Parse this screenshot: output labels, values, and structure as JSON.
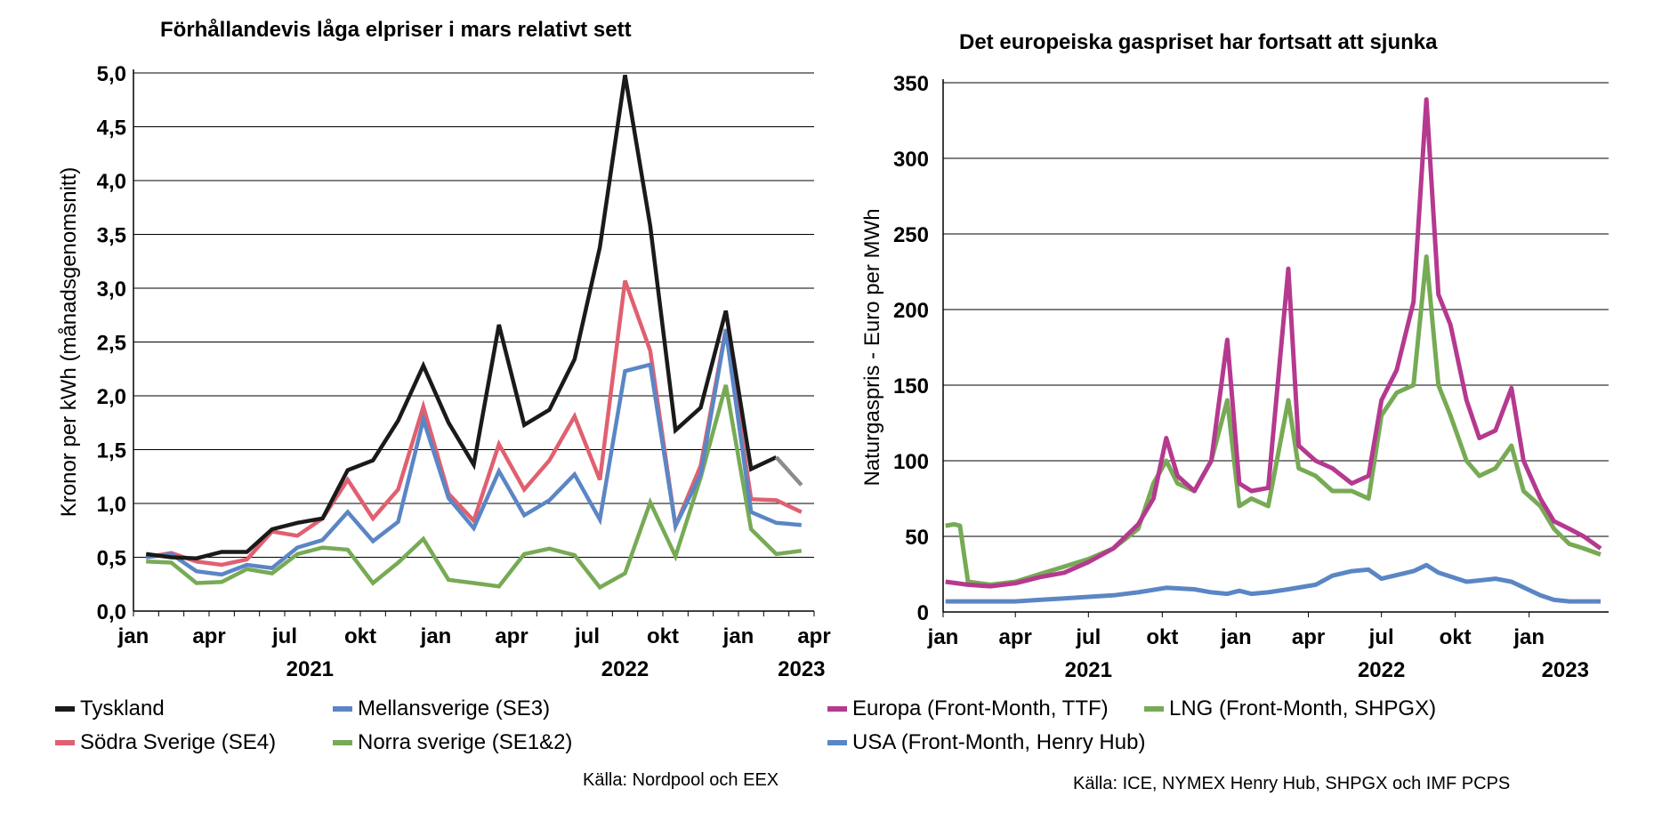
{
  "chart_data": [
    {
      "type": "line",
      "title": "Förhållandevis låga elpriser i mars relativt sett",
      "ylabel": "Kronor per kWh (månadsgenomsnitt)",
      "xlabel": "",
      "ylim": [
        0,
        5
      ],
      "yticks": [
        "0,0",
        "0,5",
        "1,0",
        "1,5",
        "2,0",
        "2,5",
        "3,0",
        "3,5",
        "4,0",
        "4,5",
        "5,0"
      ],
      "xticks": [
        "jan",
        "apr",
        "jul",
        "okt",
        "jan",
        "apr",
        "jul",
        "okt",
        "jan",
        "apr"
      ],
      "years": [
        "2021",
        "2022",
        "2023"
      ],
      "grid": true,
      "legend_position": "bottom",
      "source": "Källa: Nordpool och EEX",
      "months": [
        "2021-01",
        "2021-02",
        "2021-03",
        "2021-04",
        "2021-05",
        "2021-06",
        "2021-07",
        "2021-08",
        "2021-09",
        "2021-10",
        "2021-11",
        "2021-12",
        "2022-01",
        "2022-02",
        "2022-03",
        "2022-04",
        "2022-05",
        "2022-06",
        "2022-07",
        "2022-08",
        "2022-09",
        "2022-10",
        "2022-11",
        "2022-12",
        "2023-01",
        "2023-02",
        "2023-03"
      ],
      "series": [
        {
          "name": "Tyskland",
          "color": "#1a1a1a",
          "values": [
            0.53,
            0.5,
            0.49,
            0.55,
            0.55,
            0.76,
            0.82,
            0.86,
            1.31,
            1.4,
            1.77,
            2.28,
            1.75,
            1.36,
            2.66,
            1.73,
            1.87,
            2.34,
            3.38,
            4.98,
            3.58,
            1.68,
            1.89,
            2.79,
            1.32,
            1.43,
            null
          ],
          "projected": {
            "color": "#8c8c8c",
            "from_index": 25,
            "values": [
              1.43,
              1.17
            ]
          }
        },
        {
          "name": "Mellansverige (SE3)",
          "color": "#5b86c5",
          "values": [
            0.5,
            0.53,
            0.37,
            0.34,
            0.43,
            0.4,
            0.59,
            0.66,
            0.92,
            0.65,
            0.83,
            1.78,
            1.05,
            0.77,
            1.3,
            0.89,
            1.03,
            1.27,
            0.85,
            2.23,
            2.29,
            0.79,
            1.27,
            2.61,
            0.92,
            0.82,
            0.8
          ]
        },
        {
          "name": "Södra Sverige (SE4)",
          "color": "#e06070",
          "values": [
            0.5,
            0.54,
            0.46,
            0.43,
            0.48,
            0.74,
            0.7,
            0.86,
            1.22,
            0.86,
            1.13,
            1.9,
            1.09,
            0.84,
            1.55,
            1.13,
            1.4,
            1.81,
            1.22,
            3.07,
            2.42,
            0.79,
            1.35,
            2.62,
            1.04,
            1.03,
            0.92
          ]
        },
        {
          "name": "Norra sverige (SE1&2)",
          "color": "#77aa55",
          "values": [
            0.46,
            0.45,
            0.26,
            0.27,
            0.39,
            0.35,
            0.53,
            0.59,
            0.57,
            0.26,
            0.45,
            0.67,
            0.29,
            0.26,
            0.23,
            0.53,
            0.58,
            0.52,
            0.22,
            0.35,
            1.01,
            0.51,
            1.24,
            2.1,
            0.76,
            0.53,
            0.56
          ]
        }
      ]
    },
    {
      "type": "line",
      "title": "Det europeiska gaspriset har fortsatt att sjunka",
      "ylabel": "Naturgaspris - Euro per MWh",
      "xlabel": "",
      "ylim": [
        0,
        350
      ],
      "yticks": [
        "0",
        "50",
        "100",
        "150",
        "200",
        "250",
        "300",
        "350"
      ],
      "xticks": [
        "jan",
        "apr",
        "jul",
        "okt",
        "jan",
        "apr",
        "jul",
        "okt",
        "jan"
      ],
      "years": [
        "2021",
        "2022",
        "2023"
      ],
      "grid": true,
      "legend_position": "bottom",
      "source": "Källa: ICE, NYMEX Henry Hub, SHPGX och IMF PCPS",
      "series": [
        {
          "name": "Europa (Front-Month, TTF)",
          "color": "#b5398f",
          "x": [
            "2021-01-04",
            "2021-02-01",
            "2021-03-01",
            "2021-04-01",
            "2021-05-01",
            "2021-06-01",
            "2021-07-01",
            "2021-08-01",
            "2021-09-01",
            "2021-09-20",
            "2021-10-06",
            "2021-10-20",
            "2021-11-10",
            "2021-12-01",
            "2021-12-21",
            "2022-01-05",
            "2022-01-20",
            "2022-02-10",
            "2022-03-07",
            "2022-03-20",
            "2022-04-10",
            "2022-05-01",
            "2022-05-25",
            "2022-06-15",
            "2022-07-01",
            "2022-07-20",
            "2022-08-10",
            "2022-08-26",
            "2022-09-10",
            "2022-09-25",
            "2022-10-15",
            "2022-10-31",
            "2022-11-20",
            "2022-12-10",
            "2022-12-25",
            "2023-01-15",
            "2023-02-01",
            "2023-02-20",
            "2023-03-10",
            "2023-03-31"
          ],
          "values": [
            20,
            18,
            17,
            19,
            23,
            26,
            33,
            42,
            58,
            75,
            115,
            90,
            80,
            100,
            180,
            85,
            80,
            82,
            227,
            110,
            100,
            95,
            85,
            90,
            140,
            160,
            205,
            339,
            210,
            190,
            140,
            115,
            120,
            148,
            100,
            75,
            60,
            55,
            50,
            42
          ]
        },
        {
          "name": "LNG (Front-Month, SHPGX)",
          "color": "#77aa55",
          "x": [
            "2021-01-04",
            "2021-01-15",
            "2021-01-22",
            "2021-02-01",
            "2021-03-01",
            "2021-04-01",
            "2021-05-01",
            "2021-06-01",
            "2021-07-01",
            "2021-08-01",
            "2021-09-01",
            "2021-09-20",
            "2021-10-06",
            "2021-10-20",
            "2021-11-10",
            "2021-12-01",
            "2021-12-21",
            "2022-01-05",
            "2022-01-20",
            "2022-02-10",
            "2022-03-07",
            "2022-03-20",
            "2022-04-10",
            "2022-05-01",
            "2022-05-25",
            "2022-06-15",
            "2022-07-01",
            "2022-07-20",
            "2022-08-10",
            "2022-08-26",
            "2022-09-10",
            "2022-09-25",
            "2022-10-15",
            "2022-10-31",
            "2022-11-20",
            "2022-12-10",
            "2022-12-25",
            "2023-01-15",
            "2023-02-01",
            "2023-02-20",
            "2023-03-10",
            "2023-03-31"
          ],
          "values": [
            57,
            58,
            57,
            20,
            18,
            20,
            25,
            30,
            35,
            42,
            55,
            85,
            100,
            85,
            80,
            100,
            140,
            70,
            75,
            70,
            140,
            95,
            90,
            80,
            80,
            75,
            130,
            145,
            150,
            235,
            150,
            130,
            100,
            90,
            95,
            110,
            80,
            70,
            55,
            45,
            42,
            38
          ]
        },
        {
          "name": "USA (Front-Month, Henry Hub)",
          "color": "#5b86c5",
          "x": [
            "2021-01-04",
            "2021-02-01",
            "2021-03-01",
            "2021-04-01",
            "2021-05-01",
            "2021-06-01",
            "2021-07-01",
            "2021-08-01",
            "2021-09-01",
            "2021-10-06",
            "2021-11-10",
            "2021-12-01",
            "2021-12-21",
            "2022-01-05",
            "2022-01-20",
            "2022-02-10",
            "2022-03-07",
            "2022-04-10",
            "2022-05-01",
            "2022-05-25",
            "2022-06-15",
            "2022-07-01",
            "2022-08-10",
            "2022-08-26",
            "2022-09-10",
            "2022-10-15",
            "2022-11-20",
            "2022-12-10",
            "2023-01-15",
            "2023-02-01",
            "2023-02-20",
            "2023-03-10",
            "2023-03-31"
          ],
          "values": [
            7,
            7,
            7,
            7,
            8,
            9,
            10,
            11,
            13,
            16,
            15,
            13,
            12,
            14,
            12,
            13,
            15,
            18,
            24,
            27,
            28,
            22,
            27,
            31,
            26,
            20,
            22,
            20,
            11,
            8,
            7,
            7,
            7
          ]
        }
      ]
    }
  ]
}
